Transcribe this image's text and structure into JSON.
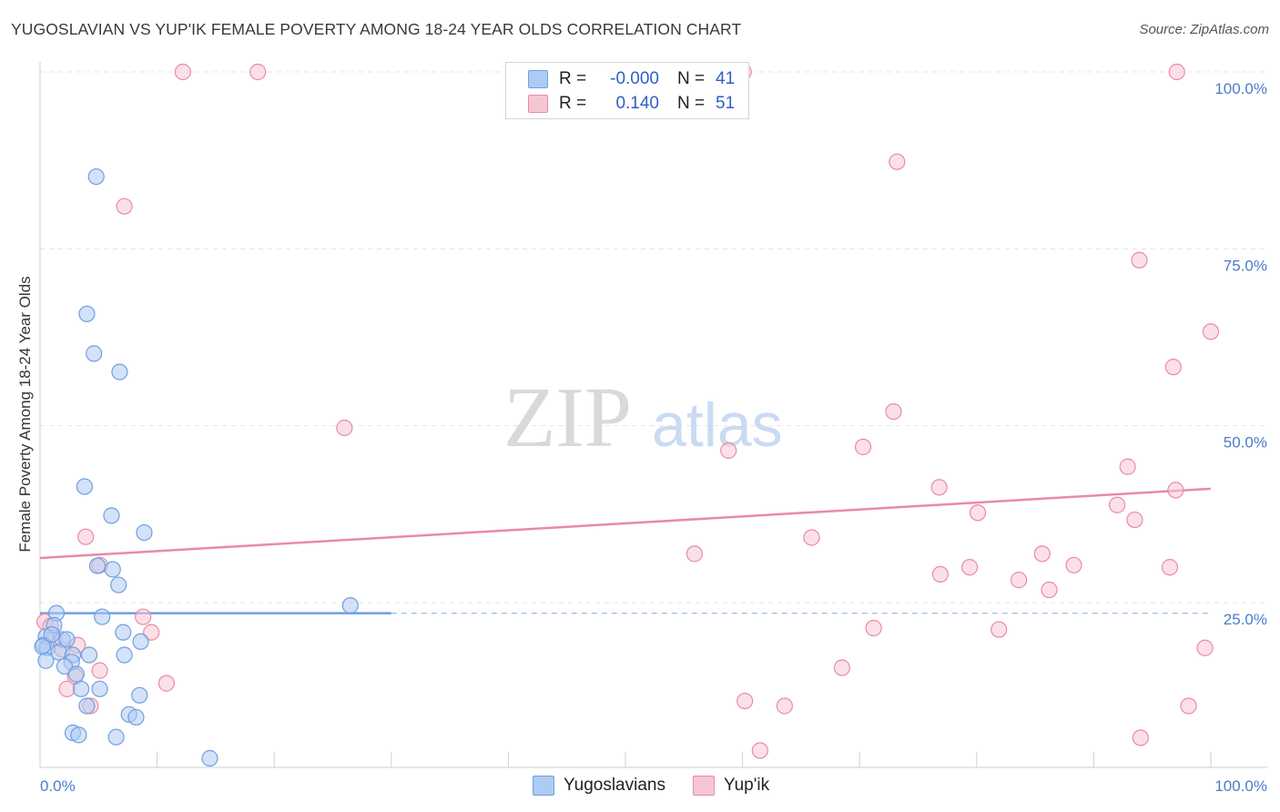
{
  "title": "YUGOSLAVIAN VS YUP'IK FEMALE POVERTY AMONG 18-24 YEAR OLDS CORRELATION CHART",
  "source": "Source: ZipAtlas.com",
  "watermark": {
    "zip": "ZIP",
    "atlas": "atlas"
  },
  "legend": {
    "r_label": "R =",
    "n_label": "N =",
    "rows": [
      {
        "r": "-0.000",
        "n": "41",
        "color": "#aecbf2",
        "border": "#6f9fe0"
      },
      {
        "r": "0.140",
        "n": "51",
        "color": "#f7c6d3",
        "border": "#e98aa6"
      }
    ]
  },
  "bottom_legend": [
    {
      "label": "Yugoslavians",
      "color": "#aecbf2",
      "border": "#6f9fe0"
    },
    {
      "label": "Yup'ik",
      "color": "#f7c6d3",
      "border": "#e98aa6"
    }
  ],
  "chart_data": {
    "type": "scatter",
    "ylabel": "Female Poverty Among 18-24 Year Olds",
    "x_tick_labels": {
      "left": "0.0%",
      "right": "100.0%"
    },
    "y_tick_labels": [
      "100.0%",
      "75.0%",
      "50.0%",
      "25.0%"
    ],
    "y_ticks": [
      100,
      75,
      50,
      25
    ],
    "xlim": [
      0,
      100
    ],
    "ylim": [
      0,
      105
    ],
    "series": [
      {
        "name": "Yugoslavians",
        "color": "#6f9fe0",
        "fill": "#aecbf2",
        "trend": {
          "x0": 0,
          "y0": 23.5,
          "x1": 30,
          "y1": 23.5,
          "dash_to": 100
        },
        "points": [
          [
            4.8,
            85.2
          ],
          [
            4.0,
            65.8
          ],
          [
            4.6,
            60.2
          ],
          [
            6.8,
            57.6
          ],
          [
            3.8,
            41.4
          ],
          [
            6.1,
            37.3
          ],
          [
            8.9,
            34.9
          ],
          [
            4.9,
            30.2
          ],
          [
            6.2,
            29.7
          ],
          [
            6.7,
            27.5
          ],
          [
            26.5,
            24.6
          ],
          [
            1.4,
            23.5
          ],
          [
            5.3,
            23.0
          ],
          [
            7.1,
            20.8
          ],
          [
            1.2,
            21.8
          ],
          [
            0.5,
            20.2
          ],
          [
            1.9,
            19.8
          ],
          [
            2.3,
            19.8
          ],
          [
            8.6,
            19.5
          ],
          [
            0.3,
            19.0
          ],
          [
            0.6,
            18.6
          ],
          [
            1.6,
            18.0
          ],
          [
            2.8,
            17.6
          ],
          [
            4.2,
            17.6
          ],
          [
            7.2,
            17.6
          ],
          [
            0.5,
            16.8
          ],
          [
            2.7,
            16.6
          ],
          [
            2.1,
            16.0
          ],
          [
            3.1,
            14.9
          ],
          [
            3.5,
            12.8
          ],
          [
            5.1,
            12.8
          ],
          [
            8.5,
            11.9
          ],
          [
            4.0,
            10.4
          ],
          [
            7.6,
            9.2
          ],
          [
            8.2,
            8.8
          ],
          [
            2.8,
            6.6
          ],
          [
            3.3,
            6.3
          ],
          [
            6.5,
            6.0
          ],
          [
            14.5,
            3.0
          ],
          [
            0.2,
            18.8
          ],
          [
            1.0,
            20.5
          ]
        ]
      },
      {
        "name": "Yup'ik",
        "color": "#e98aa6",
        "fill": "#f7c6d3",
        "trend": {
          "x0": 0,
          "y0": 31.3,
          "x1": 100,
          "y1": 41.1
        },
        "points": [
          [
            12.2,
            100
          ],
          [
            18.6,
            100
          ],
          [
            60.1,
            100
          ],
          [
            97.1,
            100
          ],
          [
            73.2,
            87.3
          ],
          [
            7.2,
            81.0
          ],
          [
            93.9,
            73.4
          ],
          [
            100.0,
            63.3
          ],
          [
            96.8,
            58.3
          ],
          [
            26.0,
            49.7
          ],
          [
            72.9,
            52.0
          ],
          [
            70.3,
            47.0
          ],
          [
            58.8,
            46.5
          ],
          [
            92.9,
            44.2
          ],
          [
            76.8,
            41.3
          ],
          [
            97.0,
            40.9
          ],
          [
            92.0,
            38.8
          ],
          [
            80.1,
            37.7
          ],
          [
            93.5,
            36.7
          ],
          [
            3.9,
            34.3
          ],
          [
            65.9,
            34.2
          ],
          [
            55.9,
            31.9
          ],
          [
            85.6,
            31.9
          ],
          [
            88.3,
            30.3
          ],
          [
            96.5,
            30.0
          ],
          [
            5.1,
            30.3
          ],
          [
            79.4,
            30.0
          ],
          [
            76.9,
            29.0
          ],
          [
            83.6,
            28.2
          ],
          [
            86.2,
            26.8
          ],
          [
            8.8,
            23.0
          ],
          [
            0.4,
            22.3
          ],
          [
            0.9,
            21.7
          ],
          [
            71.2,
            21.4
          ],
          [
            81.9,
            21.2
          ],
          [
            9.5,
            20.8
          ],
          [
            3.2,
            19.0
          ],
          [
            99.5,
            18.6
          ],
          [
            1.9,
            18.4
          ],
          [
            68.5,
            15.8
          ],
          [
            5.1,
            15.4
          ],
          [
            3.0,
            14.6
          ],
          [
            10.8,
            13.6
          ],
          [
            2.3,
            12.8
          ],
          [
            60.2,
            11.1
          ],
          [
            63.6,
            10.4
          ],
          [
            98.1,
            10.4
          ],
          [
            4.3,
            10.4
          ],
          [
            94.0,
            5.9
          ],
          [
            61.5,
            4.1
          ],
          [
            1.2,
            20.0
          ]
        ]
      }
    ]
  }
}
